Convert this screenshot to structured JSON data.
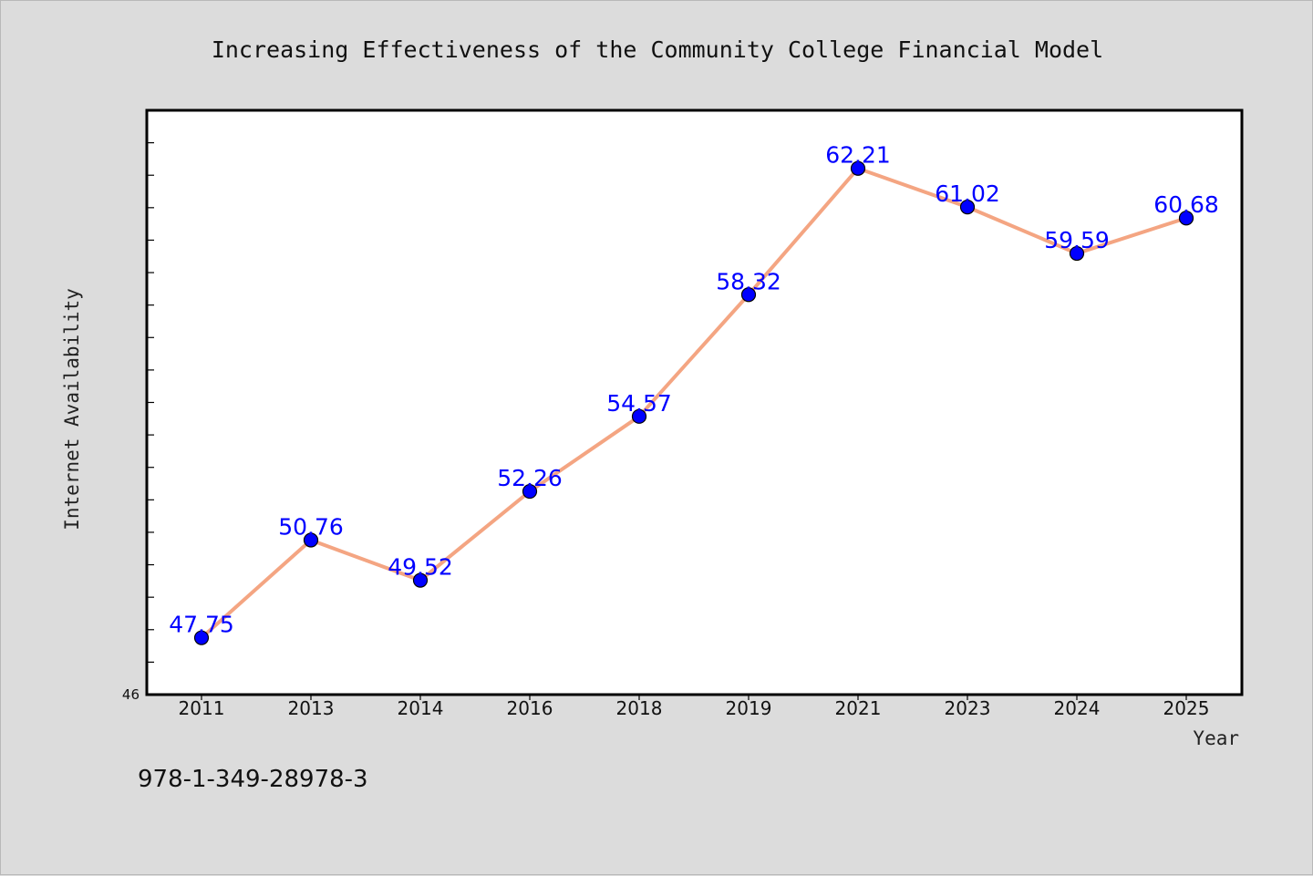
{
  "chart_data": {
    "type": "line",
    "title": "Increasing Effectiveness of the Community College Financial Model",
    "xlabel": "Year",
    "ylabel": "Internet Availability",
    "categories": [
      "2011",
      "2013",
      "2014",
      "2016",
      "2018",
      "2019",
      "2021",
      "2023",
      "2024",
      "2025"
    ],
    "series": [
      {
        "values": [
          47.75,
          50.76,
          49.52,
          52.26,
          54.57,
          58.32,
          62.21,
          61.02,
          59.59,
          60.68
        ],
        "line_color": "#f4a582",
        "marker_color": "#0000ff",
        "label_color": "#0000ff"
      }
    ],
    "ylim": [
      46,
      64
    ],
    "y_tick_labels": [
      "46"
    ],
    "grid": false,
    "legend": "none",
    "data_labels": true
  },
  "footer": {
    "isbn": "978-1-349-28978-3"
  }
}
